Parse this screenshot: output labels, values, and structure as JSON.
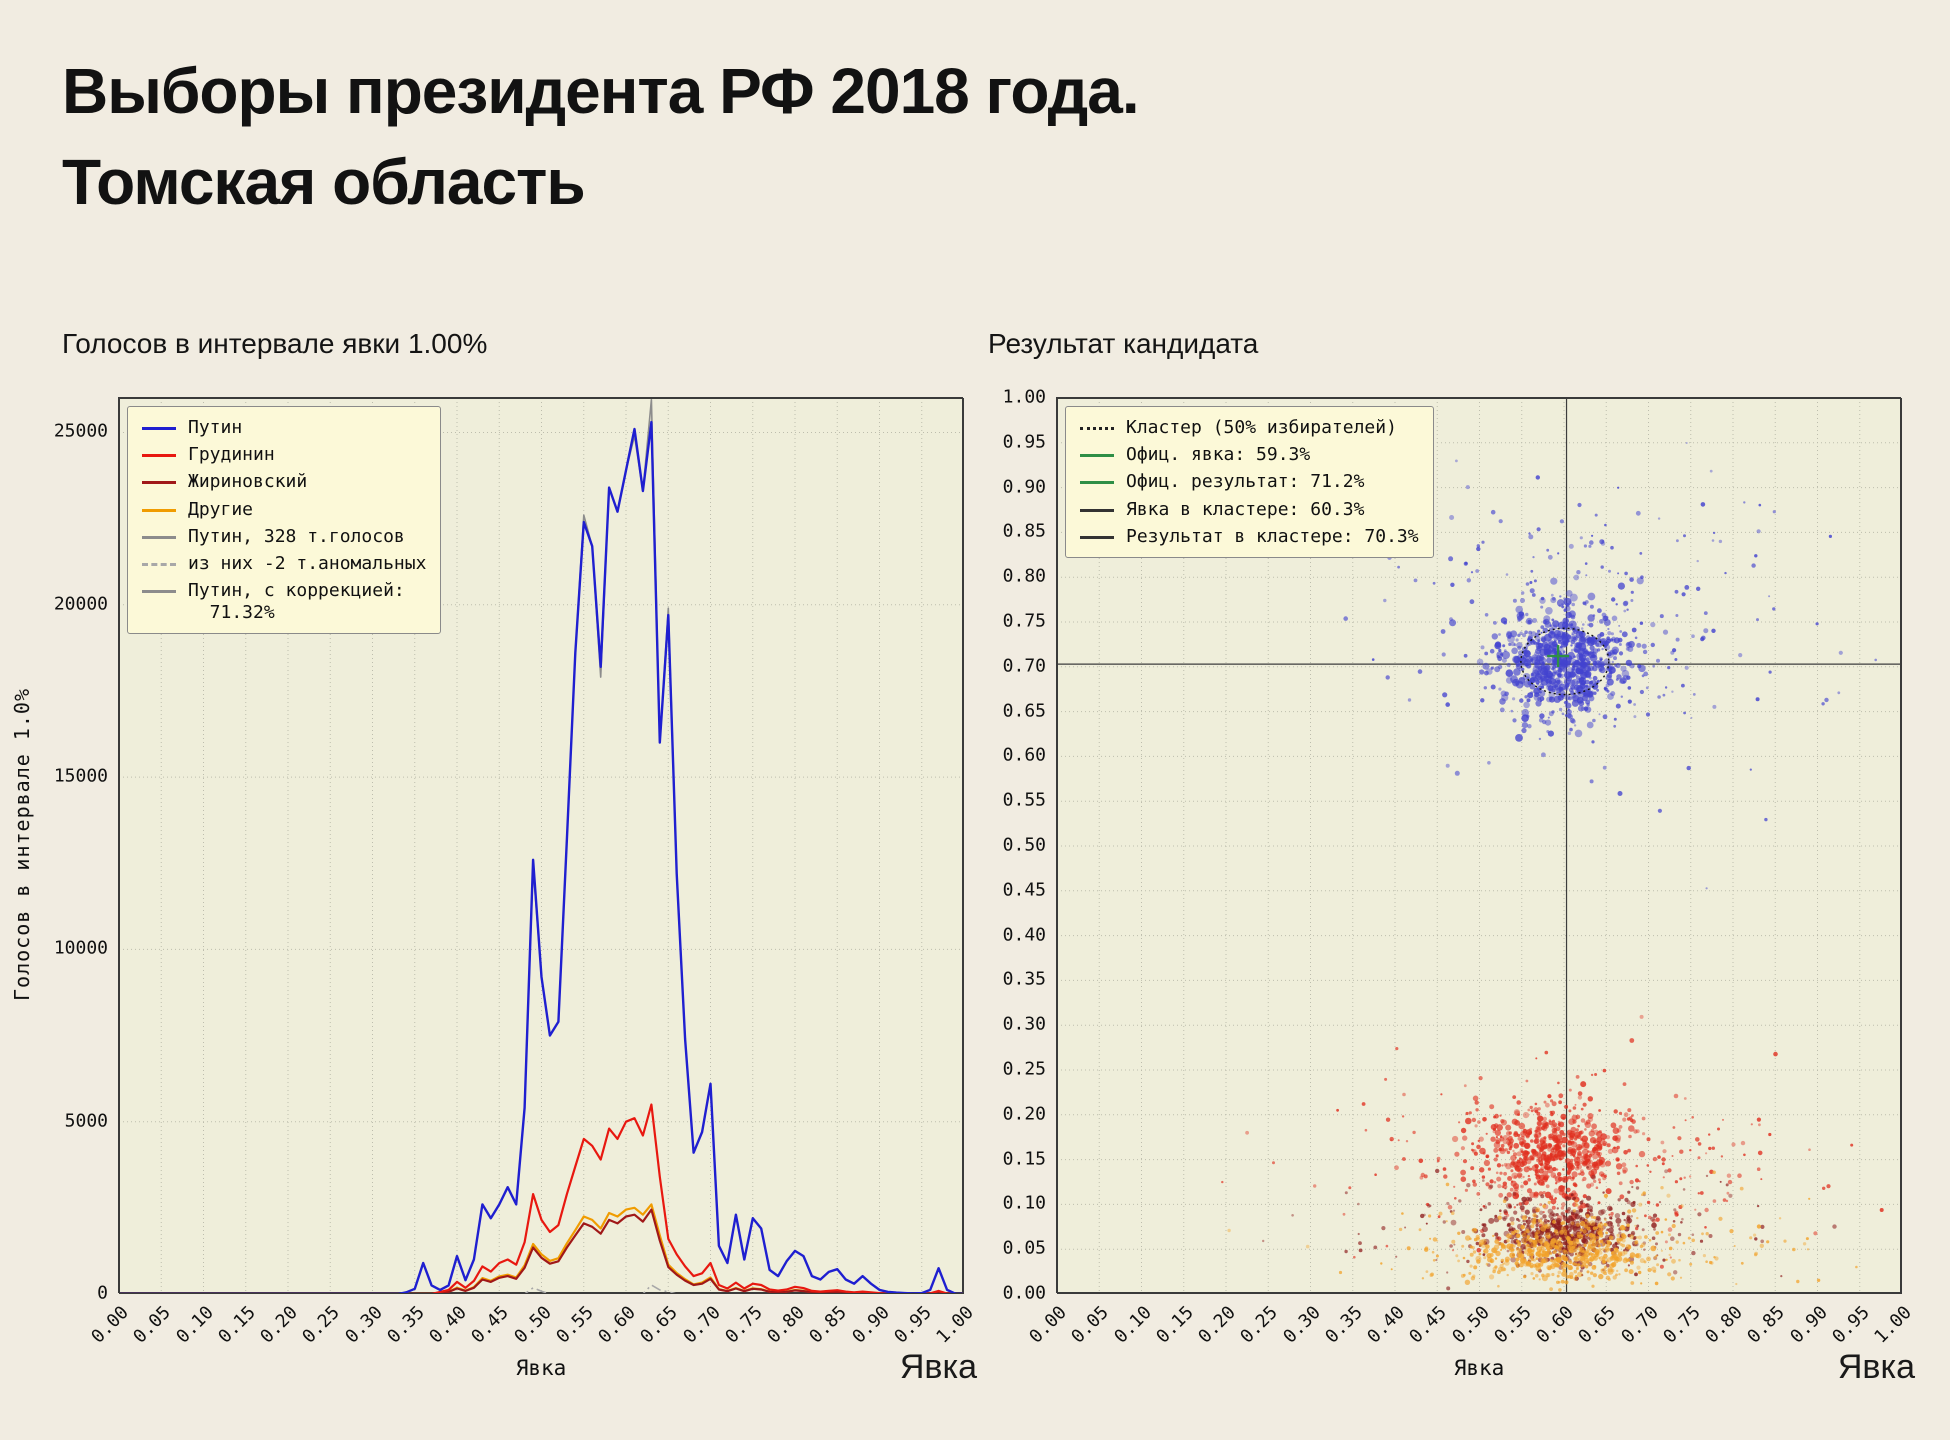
{
  "page": {
    "title_line1": "Выборы президента РФ 2018 года.",
    "title_line2": "Томская область",
    "background": "#f1ece1",
    "plot_background": "#efeeda",
    "legend_background": "#fcf9d8",
    "grid_color": "#bdbdad"
  },
  "chart_data": [
    {
      "type": "line",
      "title": "Голосов в интервале явки 1.00%",
      "xlabel": "Явка",
      "xlabel_big": "Явка",
      "ylabel": "Голосов в интервале 1.0%",
      "xlim": [
        0,
        1
      ],
      "ylim": [
        0,
        26000
      ],
      "xtick_step": 0.05,
      "ytick_step": 5000,
      "ytick_max": 25000,
      "x_step": 0.01,
      "grid": true,
      "legend_position": "upper left",
      "series": [
        {
          "name": "Путин",
          "color": "#1f1fd0",
          "style": "solid",
          "width": 2.4,
          "values": [
            0,
            0,
            0,
            0,
            0,
            0,
            0,
            0,
            0,
            0,
            0,
            0,
            0,
            0,
            0,
            0,
            0,
            0,
            0,
            0,
            0,
            0,
            0,
            0,
            0,
            0,
            0,
            0,
            0,
            0,
            0,
            0,
            0,
            0,
            50,
            150,
            900,
            250,
            120,
            250,
            1100,
            400,
            1000,
            2600,
            2200,
            2600,
            3100,
            2600,
            5400,
            12600,
            9200,
            7500,
            7900,
            13200,
            18600,
            22400,
            21700,
            18200,
            23400,
            22700,
            23900,
            25100,
            23300,
            25300,
            16000,
            19700,
            12200,
            7400,
            4100,
            4700,
            6100,
            1400,
            900,
            2300,
            1000,
            2200,
            1900,
            700,
            520,
            950,
            1250,
            1100,
            520,
            420,
            640,
            720,
            420,
            300,
            520,
            300,
            120,
            60,
            40,
            25,
            15,
            25,
            120,
            750,
            120,
            10,
            0
          ]
        },
        {
          "name": "Грудинин",
          "color": "#e81810",
          "style": "solid",
          "width": 2.2,
          "values": [
            0,
            0,
            0,
            0,
            0,
            0,
            0,
            0,
            0,
            0,
            0,
            0,
            0,
            0,
            0,
            0,
            0,
            0,
            0,
            0,
            0,
            0,
            0,
            0,
            0,
            0,
            0,
            0,
            0,
            0,
            0,
            0,
            0,
            0,
            0,
            0,
            0,
            0,
            60,
            120,
            350,
            180,
            380,
            800,
            650,
            900,
            1000,
            850,
            1500,
            2900,
            2150,
            1800,
            2000,
            2900,
            3700,
            4500,
            4300,
            3900,
            4800,
            4500,
            5000,
            5100,
            4600,
            5500,
            3400,
            1600,
            1150,
            800,
            520,
            600,
            900,
            260,
            160,
            330,
            160,
            300,
            260,
            130,
            100,
            130,
            210,
            170,
            90,
            70,
            90,
            110,
            70,
            50,
            70,
            50,
            25,
            12,
            8,
            5,
            4,
            5,
            20,
            90,
            15,
            2,
            0
          ]
        },
        {
          "name": "Жириновский",
          "color": "#a01818",
          "style": "solid",
          "width": 2.2,
          "values": [
            0,
            0,
            0,
            0,
            0,
            0,
            0,
            0,
            0,
            0,
            0,
            0,
            0,
            0,
            0,
            0,
            0,
            0,
            0,
            0,
            0,
            0,
            0,
            0,
            0,
            0,
            0,
            0,
            0,
            0,
            0,
            0,
            0,
            0,
            0,
            0,
            0,
            0,
            0,
            60,
            160,
            90,
            180,
            420,
            350,
            470,
            520,
            440,
            760,
            1350,
            1050,
            880,
            950,
            1350,
            1700,
            2050,
            1950,
            1750,
            2150,
            2050,
            2250,
            2300,
            2100,
            2450,
            1550,
            780,
            560,
            390,
            260,
            300,
            440,
            130,
            80,
            160,
            80,
            150,
            130,
            65,
            50,
            65,
            105,
            85,
            45,
            35,
            45,
            55,
            35,
            25,
            35,
            25,
            12,
            6,
            4,
            3,
            2,
            3,
            10,
            45,
            8,
            1,
            0
          ]
        },
        {
          "name": "Другие",
          "color": "#f09c00",
          "style": "solid",
          "width": 2.2,
          "values": [
            0,
            0,
            0,
            0,
            0,
            0,
            0,
            0,
            0,
            0,
            0,
            0,
            0,
            0,
            0,
            0,
            0,
            0,
            0,
            0,
            0,
            0,
            0,
            0,
            0,
            0,
            0,
            0,
            0,
            0,
            0,
            0,
            0,
            0,
            0,
            0,
            0,
            0,
            0,
            70,
            180,
            100,
            200,
            460,
            380,
            510,
            560,
            480,
            830,
            1450,
            1150,
            960,
            1040,
            1470,
            1850,
            2250,
            2150,
            1900,
            2350,
            2250,
            2450,
            2500,
            2300,
            2600,
            1700,
            850,
            610,
            430,
            280,
            330,
            480,
            140,
            90,
            175,
            90,
            165,
            140,
            70,
            55,
            70,
            115,
            95,
            50,
            38,
            50,
            60,
            38,
            28,
            38,
            28,
            13,
            7,
            5,
            3,
            2,
            3,
            11,
            50,
            9,
            1,
            0
          ]
        },
        {
          "name": "Путин, 328 т.голосов",
          "color": "#8c8c8c",
          "style": "solid",
          "width": 1.6,
          "values": [
            0,
            0,
            0,
            0,
            0,
            0,
            0,
            0,
            0,
            0,
            0,
            0,
            0,
            0,
            0,
            0,
            0,
            0,
            0,
            0,
            0,
            0,
            0,
            0,
            0,
            0,
            0,
            0,
            0,
            0,
            0,
            0,
            0,
            0,
            50,
            150,
            900,
            250,
            120,
            250,
            1100,
            400,
            1000,
            2600,
            2200,
            2600,
            3100,
            2600,
            5400,
            12400,
            9200,
            7500,
            7900,
            13200,
            18600,
            22600,
            21700,
            17900,
            23400,
            22700,
            23900,
            24900,
            23300,
            25950,
            16000,
            19900,
            12200,
            7400,
            4100,
            4700,
            6100,
            1400,
            900,
            2300,
            1000,
            2200,
            1900,
            700,
            520,
            950,
            1250,
            1100,
            520,
            420,
            640,
            720,
            420,
            300,
            520,
            300,
            120,
            60,
            40,
            25,
            15,
            25,
            120,
            750,
            120,
            10,
            0
          ]
        },
        {
          "name": "из них -2 т.аномальных",
          "color": "#a8a8a8",
          "style": "dashdot",
          "width": 1.6,
          "values": [
            0,
            0,
            0,
            0,
            0,
            0,
            0,
            0,
            0,
            0,
            0,
            0,
            0,
            0,
            0,
            0,
            0,
            0,
            0,
            0,
            0,
            0,
            0,
            0,
            0,
            0,
            0,
            0,
            0,
            0,
            0,
            0,
            0,
            0,
            0,
            0,
            0,
            0,
            0,
            0,
            0,
            0,
            0,
            0,
            0,
            0,
            0,
            0,
            0,
            180,
            80,
            0,
            0,
            0,
            0,
            0,
            0,
            0,
            0,
            0,
            0,
            0,
            0,
            260,
            120,
            60,
            0,
            0,
            0,
            0,
            0,
            0,
            0,
            0,
            0,
            0,
            0,
            0,
            0,
            0,
            0,
            0,
            0,
            0,
            0,
            0,
            0,
            0,
            0,
            0,
            0,
            0,
            0,
            0,
            0,
            0,
            0,
            0,
            0,
            0,
            0
          ]
        },
        {
          "name": "Путин, с коррекцией:",
          "name2": "  71.32%",
          "color": "#8c8c8c",
          "style": "solid",
          "width": 1.6,
          "values": [
            0,
            0,
            0,
            0,
            0,
            0,
            0,
            0,
            0,
            0,
            0,
            0,
            0,
            0,
            0,
            0,
            0,
            0,
            0,
            0,
            0,
            0,
            0,
            0,
            0,
            0,
            0,
            0,
            0,
            0,
            0,
            0,
            0,
            0,
            50,
            150,
            900,
            250,
            120,
            250,
            1100,
            400,
            1000,
            2600,
            2200,
            2600,
            3100,
            2600,
            5400,
            12600,
            9200,
            7500,
            7900,
            13200,
            18600,
            22400,
            21700,
            18200,
            23400,
            22700,
            23900,
            25100,
            23300,
            25300,
            16000,
            19700,
            12200,
            7400,
            4100,
            4700,
            6100,
            1400,
            900,
            2300,
            1000,
            2200,
            1900,
            700,
            520,
            950,
            1250,
            1100,
            520,
            420,
            640,
            720,
            420,
            300,
            520,
            300,
            120,
            60,
            40,
            25,
            15,
            25,
            120,
            750,
            120,
            10,
            0
          ]
        }
      ]
    },
    {
      "type": "scatter",
      "title": "Результат кандидата",
      "xlabel": "Явка",
      "xlabel_big": "Явка",
      "xlim": [
        0,
        1
      ],
      "ylim": [
        0,
        1
      ],
      "xtick_step": 0.05,
      "ytick_step": 0.05,
      "ytick_max": 1.0,
      "grid": true,
      "crosshair": {
        "x": 0.603,
        "y": 0.703,
        "color": "#3c3c3c"
      },
      "official_marker": {
        "x": 0.593,
        "y": 0.712,
        "color": "#2e8f46"
      },
      "cluster_ellipse": {
        "cx": 0.601,
        "cy": 0.706,
        "rx": 0.052,
        "ry": 0.037,
        "color": "#111111"
      },
      "clusters": [
        {
          "name": "putin-core",
          "color": "#4343cf",
          "n": 650,
          "cx": 0.6,
          "cy": 0.706,
          "sx": 0.038,
          "sy": 0.03,
          "rmin": 1.2,
          "rmax": 4.0,
          "seed": 11
        },
        {
          "name": "putin-spread",
          "color": "#4343cf",
          "n": 220,
          "cx": 0.625,
          "cy": 0.745,
          "sx": 0.095,
          "sy": 0.075,
          "rmin": 1.0,
          "rmax": 2.6,
          "seed": 12
        },
        {
          "name": "putin-outliers",
          "color": "#4343cf",
          "n": 28,
          "cx": 0.82,
          "cy": 0.73,
          "sx": 0.11,
          "sy": 0.1,
          "rmin": 1.0,
          "rmax": 2.2,
          "seed": 13
        },
        {
          "name": "grudinin-core",
          "color": "#e03020",
          "n": 520,
          "cx": 0.585,
          "cy": 0.156,
          "sx": 0.045,
          "sy": 0.028,
          "rmin": 1.2,
          "rmax": 3.4,
          "seed": 21
        },
        {
          "name": "grudinin-spread",
          "color": "#e03020",
          "n": 280,
          "cx": 0.63,
          "cy": 0.145,
          "sx": 0.13,
          "sy": 0.05,
          "rmin": 1.0,
          "rmax": 2.4,
          "seed": 22
        },
        {
          "name": "zhirinovsky-core",
          "color": "#8f1f1f",
          "n": 430,
          "cx": 0.597,
          "cy": 0.068,
          "sx": 0.042,
          "sy": 0.016,
          "rmin": 1.2,
          "rmax": 3.0,
          "seed": 31
        },
        {
          "name": "zhirinovsky-spread",
          "color": "#8f1f1f",
          "n": 160,
          "cx": 0.62,
          "cy": 0.075,
          "sx": 0.12,
          "sy": 0.028,
          "rmin": 1.0,
          "rmax": 2.2,
          "seed": 32
        },
        {
          "name": "others-core",
          "color": "#f2a22a",
          "n": 430,
          "cx": 0.6,
          "cy": 0.047,
          "sx": 0.055,
          "sy": 0.016,
          "rmin": 1.2,
          "rmax": 3.0,
          "seed": 41
        },
        {
          "name": "others-spread",
          "color": "#f2a22a",
          "n": 210,
          "cx": 0.63,
          "cy": 0.055,
          "sx": 0.13,
          "sy": 0.028,
          "rmin": 1.0,
          "rmax": 2.2,
          "seed": 42
        }
      ],
      "legend": [
        {
          "label": "Кластер (50% избирателей)",
          "color": "#222222",
          "style": "dotted"
        },
        {
          "label": "Офиц. явка: 59.3%",
          "color": "#2e8f46",
          "style": "solid"
        },
        {
          "label": "Офиц. результат: 71.2%",
          "color": "#2e8f46",
          "style": "solid"
        },
        {
          "label": "Явка в кластере: 60.3%",
          "color": "#333333",
          "style": "solid"
        },
        {
          "label": "Результат в кластере: 70.3%",
          "color": "#333333",
          "style": "solid"
        }
      ]
    }
  ]
}
